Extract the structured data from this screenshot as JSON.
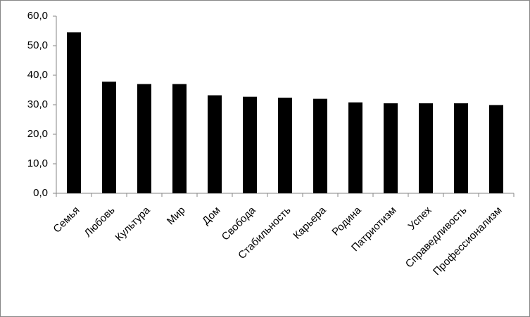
{
  "chart_data": {
    "type": "bar",
    "categories": [
      "Семья",
      "Любовь",
      "Культура",
      "Мир",
      "Дом",
      "Свобода",
      "Стабильность",
      "Карьера",
      "Родина",
      "Патриотизм",
      "Успех",
      "Справедливость",
      "Профессионализм"
    ],
    "values": [
      54.5,
      37.8,
      37.0,
      37.0,
      33.2,
      32.7,
      32.4,
      32.0,
      30.8,
      30.5,
      30.5,
      30.5,
      29.9
    ],
    "color": "#000000",
    "ylim": [
      0,
      60
    ],
    "yticks": [
      {
        "value": 0,
        "label": "0,0"
      },
      {
        "value": 10,
        "label": "10,0"
      },
      {
        "value": 20,
        "label": "20,0"
      },
      {
        "value": 30,
        "label": "30,0"
      },
      {
        "value": 40,
        "label": "40,0"
      },
      {
        "value": 50,
        "label": "50,0"
      },
      {
        "value": 60,
        "label": "60,0"
      }
    ],
    "grid": false
  }
}
